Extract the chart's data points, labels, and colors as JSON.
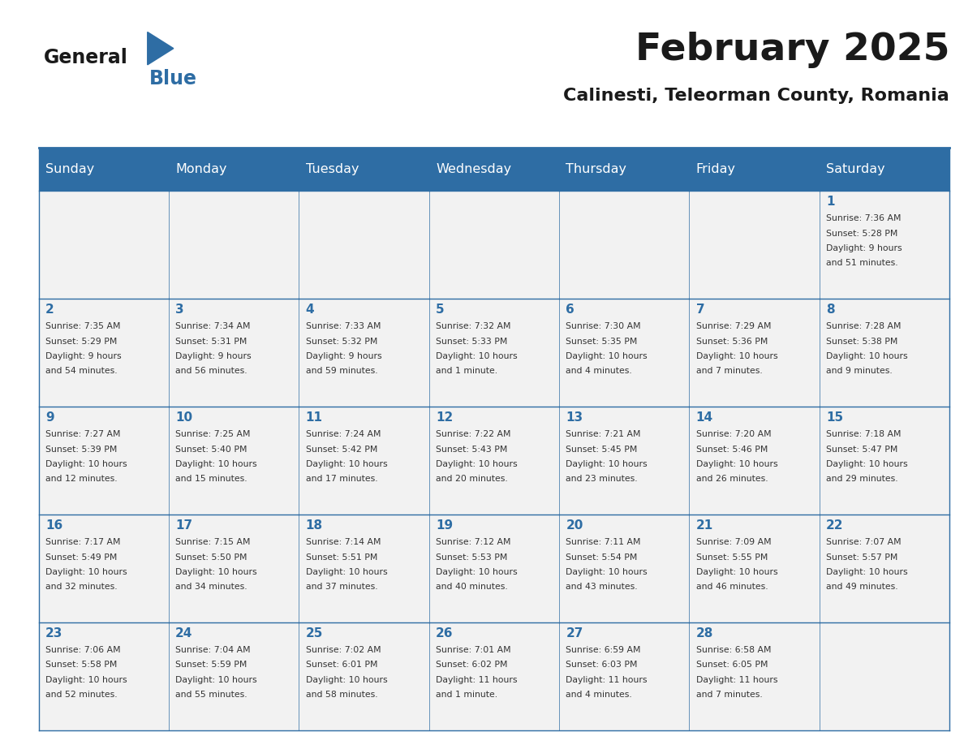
{
  "title": "February 2025",
  "subtitle": "Calinesti, Teleorman County, Romania",
  "days_of_week": [
    "Sunday",
    "Monday",
    "Tuesday",
    "Wednesday",
    "Thursday",
    "Friday",
    "Saturday"
  ],
  "header_bg_color": "#2E6DA4",
  "header_text_color": "#FFFFFF",
  "cell_bg_color": "#F2F2F2",
  "border_color": "#2E6DA4",
  "day_number_color": "#2E6DA4",
  "info_text_color": "#333333",
  "title_color": "#1A1A1A",
  "subtitle_color": "#1A1A1A",
  "logo_general_color": "#1A1A1A",
  "logo_blue_color": "#2E6DA4",
  "calendar_data": [
    [
      null,
      null,
      null,
      null,
      null,
      null,
      1
    ],
    [
      2,
      3,
      4,
      5,
      6,
      7,
      8
    ],
    [
      9,
      10,
      11,
      12,
      13,
      14,
      15
    ],
    [
      16,
      17,
      18,
      19,
      20,
      21,
      22
    ],
    [
      23,
      24,
      25,
      26,
      27,
      28,
      null
    ]
  ],
  "sunrise_sunset": {
    "1": {
      "sunrise": "7:36 AM",
      "sunset": "5:28 PM",
      "daylight_h": "9 hours",
      "daylight_m": "51 minutes"
    },
    "2": {
      "sunrise": "7:35 AM",
      "sunset": "5:29 PM",
      "daylight_h": "9 hours",
      "daylight_m": "54 minutes"
    },
    "3": {
      "sunrise": "7:34 AM",
      "sunset": "5:31 PM",
      "daylight_h": "9 hours",
      "daylight_m": "56 minutes"
    },
    "4": {
      "sunrise": "7:33 AM",
      "sunset": "5:32 PM",
      "daylight_h": "9 hours",
      "daylight_m": "59 minutes"
    },
    "5": {
      "sunrise": "7:32 AM",
      "sunset": "5:33 PM",
      "daylight_h": "10 hours",
      "daylight_m": "1 minute"
    },
    "6": {
      "sunrise": "7:30 AM",
      "sunset": "5:35 PM",
      "daylight_h": "10 hours",
      "daylight_m": "4 minutes"
    },
    "7": {
      "sunrise": "7:29 AM",
      "sunset": "5:36 PM",
      "daylight_h": "10 hours",
      "daylight_m": "7 minutes"
    },
    "8": {
      "sunrise": "7:28 AM",
      "sunset": "5:38 PM",
      "daylight_h": "10 hours",
      "daylight_m": "9 minutes"
    },
    "9": {
      "sunrise": "7:27 AM",
      "sunset": "5:39 PM",
      "daylight_h": "10 hours",
      "daylight_m": "12 minutes"
    },
    "10": {
      "sunrise": "7:25 AM",
      "sunset": "5:40 PM",
      "daylight_h": "10 hours",
      "daylight_m": "15 minutes"
    },
    "11": {
      "sunrise": "7:24 AM",
      "sunset": "5:42 PM",
      "daylight_h": "10 hours",
      "daylight_m": "17 minutes"
    },
    "12": {
      "sunrise": "7:22 AM",
      "sunset": "5:43 PM",
      "daylight_h": "10 hours",
      "daylight_m": "20 minutes"
    },
    "13": {
      "sunrise": "7:21 AM",
      "sunset": "5:45 PM",
      "daylight_h": "10 hours",
      "daylight_m": "23 minutes"
    },
    "14": {
      "sunrise": "7:20 AM",
      "sunset": "5:46 PM",
      "daylight_h": "10 hours",
      "daylight_m": "26 minutes"
    },
    "15": {
      "sunrise": "7:18 AM",
      "sunset": "5:47 PM",
      "daylight_h": "10 hours",
      "daylight_m": "29 minutes"
    },
    "16": {
      "sunrise": "7:17 AM",
      "sunset": "5:49 PM",
      "daylight_h": "10 hours",
      "daylight_m": "32 minutes"
    },
    "17": {
      "sunrise": "7:15 AM",
      "sunset": "5:50 PM",
      "daylight_h": "10 hours",
      "daylight_m": "34 minutes"
    },
    "18": {
      "sunrise": "7:14 AM",
      "sunset": "5:51 PM",
      "daylight_h": "10 hours",
      "daylight_m": "37 minutes"
    },
    "19": {
      "sunrise": "7:12 AM",
      "sunset": "5:53 PM",
      "daylight_h": "10 hours",
      "daylight_m": "40 minutes"
    },
    "20": {
      "sunrise": "7:11 AM",
      "sunset": "5:54 PM",
      "daylight_h": "10 hours",
      "daylight_m": "43 minutes"
    },
    "21": {
      "sunrise": "7:09 AM",
      "sunset": "5:55 PM",
      "daylight_h": "10 hours",
      "daylight_m": "46 minutes"
    },
    "22": {
      "sunrise": "7:07 AM",
      "sunset": "5:57 PM",
      "daylight_h": "10 hours",
      "daylight_m": "49 minutes"
    },
    "23": {
      "sunrise": "7:06 AM",
      "sunset": "5:58 PM",
      "daylight_h": "10 hours",
      "daylight_m": "52 minutes"
    },
    "24": {
      "sunrise": "7:04 AM",
      "sunset": "5:59 PM",
      "daylight_h": "10 hours",
      "daylight_m": "55 minutes"
    },
    "25": {
      "sunrise": "7:02 AM",
      "sunset": "6:01 PM",
      "daylight_h": "10 hours",
      "daylight_m": "58 minutes"
    },
    "26": {
      "sunrise": "7:01 AM",
      "sunset": "6:02 PM",
      "daylight_h": "11 hours",
      "daylight_m": "1 minute"
    },
    "27": {
      "sunrise": "6:59 AM",
      "sunset": "6:03 PM",
      "daylight_h": "11 hours",
      "daylight_m": "4 minutes"
    },
    "28": {
      "sunrise": "6:58 AM",
      "sunset": "6:05 PM",
      "daylight_h": "11 hours",
      "daylight_m": "7 minutes"
    }
  }
}
